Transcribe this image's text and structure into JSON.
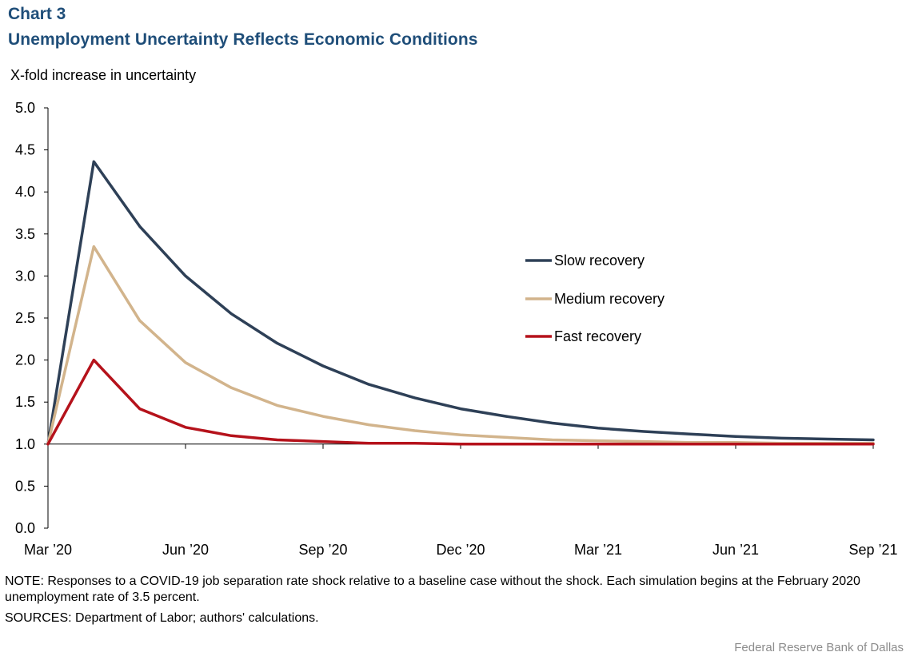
{
  "header": {
    "chart_label": "Chart 3",
    "title": "Unemployment  Uncertainty Reflects Economic  Conditions"
  },
  "footer": {
    "note": "NOTE: Responses to a COVID-19 job separation rate shock relative to a baseline case without the shock. Each simulation begins at the February 2020 unemployment  rate of 3.5 percent.",
    "sources": "SOURCES: Department  of Labor; authors' calculations.",
    "credit": "Federal Reserve  Bank of Dallas"
  },
  "chart_data": {
    "type": "line",
    "title": "Unemployment  Uncertainty Reflects Economic  Conditions",
    "ylabel": "X-fold increase in uncertainty",
    "xlabel": "",
    "ylim": [
      0,
      5
    ],
    "yticks": [
      "0.0",
      "0.5",
      "1.0",
      "1.5",
      "2.0",
      "2.5",
      "3.0",
      "3.5",
      "4.0",
      "4.5",
      "5.0"
    ],
    "x": [
      "Mar '20",
      "Apr '20",
      "May '20",
      "Jun '20",
      "Jul '20",
      "Aug '20",
      "Sep '20",
      "Oct '20",
      "Nov '20",
      "Dec '20",
      "Jan '21",
      "Feb '21",
      "Mar '21",
      "Apr '21",
      "May '21",
      "Jun '21",
      "Jul '21",
      "Aug '21",
      "Sep '21"
    ],
    "xtick_labels": [
      {
        "index": 0,
        "label": "Mar ’20"
      },
      {
        "index": 3,
        "label": "Jun ’20"
      },
      {
        "index": 6,
        "label": "Sep ’20"
      },
      {
        "index": 9,
        "label": "Dec ’20"
      },
      {
        "index": 12,
        "label": "Mar ’21"
      },
      {
        "index": 15,
        "label": "Jun ’21"
      },
      {
        "index": 18,
        "label": "Sep ’21"
      }
    ],
    "legend_position": "center-right",
    "series": [
      {
        "name": "Slow recovery",
        "color": "#2e4057",
        "values": [
          1.0,
          4.36,
          3.59,
          3.0,
          2.55,
          2.2,
          1.93,
          1.71,
          1.55,
          1.42,
          1.33,
          1.25,
          1.19,
          1.15,
          1.12,
          1.09,
          1.07,
          1.06,
          1.05
        ]
      },
      {
        "name": "Medium recovery",
        "color": "#d2b48c",
        "values": [
          1.0,
          3.35,
          2.47,
          1.97,
          1.67,
          1.46,
          1.33,
          1.23,
          1.16,
          1.11,
          1.08,
          1.05,
          1.04,
          1.03,
          1.02,
          1.02,
          1.01,
          1.01,
          1.01
        ]
      },
      {
        "name": "Fast recovery",
        "color": "#b5121b",
        "values": [
          1.0,
          2.0,
          1.42,
          1.2,
          1.1,
          1.05,
          1.03,
          1.01,
          1.01,
          1.0,
          1.0,
          1.0,
          1.0,
          1.0,
          1.0,
          1.0,
          1.0,
          1.0,
          1.0
        ]
      }
    ]
  }
}
